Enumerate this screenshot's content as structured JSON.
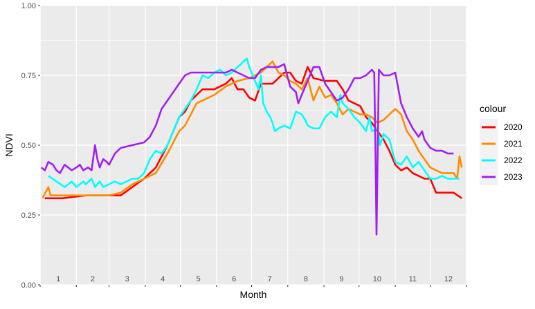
{
  "chart_data": {
    "type": "line",
    "title": "",
    "xlabel": "Month",
    "ylabel": "NDVI",
    "xlim": [
      1,
      366
    ],
    "ylim": [
      0,
      1
    ],
    "y_ticks": [
      "0.00",
      "0.25",
      "0.50",
      "0.75",
      "1.00"
    ],
    "y_tick_values": [
      0,
      0.25,
      0.5,
      0.75,
      1.0
    ],
    "month_labels": [
      "1",
      "2",
      "3",
      "4",
      "5",
      "6",
      "7",
      "8",
      "9",
      "10",
      "11",
      "12"
    ],
    "grid": true,
    "legend_title": "colour",
    "legend_position": "right",
    "series": [
      {
        "name": "2020",
        "color": "#ff0000",
        "points": [
          [
            5,
            0.31
          ],
          [
            20,
            0.31
          ],
          [
            40,
            0.32
          ],
          [
            60,
            0.32
          ],
          [
            70,
            0.32
          ],
          [
            80,
            0.35
          ],
          [
            90,
            0.38
          ],
          [
            100,
            0.42
          ],
          [
            110,
            0.5
          ],
          [
            120,
            0.6
          ],
          [
            125,
            0.62
          ],
          [
            130,
            0.66
          ],
          [
            135,
            0.68
          ],
          [
            140,
            0.7
          ],
          [
            150,
            0.7
          ],
          [
            160,
            0.72
          ],
          [
            165,
            0.74
          ],
          [
            170,
            0.7
          ],
          [
            175,
            0.7
          ],
          [
            180,
            0.67
          ],
          [
            185,
            0.66
          ],
          [
            190,
            0.72
          ],
          [
            200,
            0.72
          ],
          [
            210,
            0.76
          ],
          [
            215,
            0.76
          ],
          [
            220,
            0.73
          ],
          [
            225,
            0.72
          ],
          [
            230,
            0.78
          ],
          [
            235,
            0.74
          ],
          [
            245,
            0.73
          ],
          [
            255,
            0.73
          ],
          [
            260,
            0.7
          ],
          [
            265,
            0.66
          ],
          [
            270,
            0.65
          ],
          [
            275,
            0.64
          ],
          [
            280,
            0.6
          ],
          [
            285,
            0.58
          ],
          [
            290,
            0.55
          ],
          [
            295,
            0.52
          ],
          [
            300,
            0.48
          ],
          [
            305,
            0.43
          ],
          [
            310,
            0.41
          ],
          [
            315,
            0.42
          ],
          [
            320,
            0.4
          ],
          [
            330,
            0.38
          ],
          [
            335,
            0.38
          ],
          [
            340,
            0.33
          ],
          [
            345,
            0.33
          ],
          [
            355,
            0.33
          ],
          [
            362,
            0.31
          ]
        ]
      },
      {
        "name": "2021",
        "color": "#ff8c00",
        "points": [
          [
            3,
            0.31
          ],
          [
            8,
            0.35
          ],
          [
            10,
            0.32
          ],
          [
            25,
            0.32
          ],
          [
            40,
            0.32
          ],
          [
            60,
            0.32
          ],
          [
            70,
            0.33
          ],
          [
            80,
            0.36
          ],
          [
            90,
            0.38
          ],
          [
            100,
            0.4
          ],
          [
            110,
            0.47
          ],
          [
            120,
            0.55
          ],
          [
            125,
            0.57
          ],
          [
            135,
            0.65
          ],
          [
            150,
            0.68
          ],
          [
            160,
            0.71
          ],
          [
            170,
            0.73
          ],
          [
            180,
            0.74
          ],
          [
            190,
            0.76
          ],
          [
            195,
            0.78
          ],
          [
            200,
            0.8
          ],
          [
            205,
            0.76
          ],
          [
            210,
            0.75
          ],
          [
            215,
            0.73
          ],
          [
            220,
            0.72
          ],
          [
            225,
            0.7
          ],
          [
            230,
            0.74
          ],
          [
            235,
            0.66
          ],
          [
            240,
            0.71
          ],
          [
            245,
            0.67
          ],
          [
            250,
            0.68
          ],
          [
            255,
            0.65
          ],
          [
            260,
            0.61
          ],
          [
            265,
            0.63
          ],
          [
            270,
            0.62
          ],
          [
            275,
            0.61
          ],
          [
            280,
            0.61
          ],
          [
            285,
            0.6
          ],
          [
            290,
            0.58
          ],
          [
            295,
            0.59
          ],
          [
            300,
            0.61
          ],
          [
            305,
            0.63
          ],
          [
            310,
            0.61
          ],
          [
            315,
            0.55
          ],
          [
            320,
            0.52
          ],
          [
            325,
            0.48
          ],
          [
            330,
            0.45
          ],
          [
            335,
            0.42
          ],
          [
            340,
            0.41
          ],
          [
            345,
            0.4
          ],
          [
            355,
            0.4
          ],
          [
            358,
            0.38
          ],
          [
            360,
            0.46
          ],
          [
            362,
            0.42
          ]
        ]
      },
      {
        "name": "2022",
        "color": "#00ffff",
        "points": [
          [
            8,
            0.39
          ],
          [
            15,
            0.37
          ],
          [
            22,
            0.35
          ],
          [
            25,
            0.36
          ],
          [
            28,
            0.37
          ],
          [
            32,
            0.35
          ],
          [
            38,
            0.37
          ],
          [
            40,
            0.36
          ],
          [
            45,
            0.38
          ],
          [
            48,
            0.35
          ],
          [
            52,
            0.37
          ],
          [
            55,
            0.35
          ],
          [
            60,
            0.36
          ],
          [
            65,
            0.37
          ],
          [
            70,
            0.36
          ],
          [
            75,
            0.37
          ],
          [
            80,
            0.38
          ],
          [
            85,
            0.38
          ],
          [
            90,
            0.4
          ],
          [
            95,
            0.45
          ],
          [
            100,
            0.48
          ],
          [
            105,
            0.47
          ],
          [
            110,
            0.5
          ],
          [
            115,
            0.55
          ],
          [
            120,
            0.6
          ],
          [
            125,
            0.63
          ],
          [
            130,
            0.66
          ],
          [
            135,
            0.7
          ],
          [
            140,
            0.75
          ],
          [
            145,
            0.74
          ],
          [
            150,
            0.76
          ],
          [
            155,
            0.77
          ],
          [
            160,
            0.75
          ],
          [
            165,
            0.76
          ],
          [
            170,
            0.78
          ],
          [
            173,
            0.79
          ],
          [
            175,
            0.8
          ],
          [
            178,
            0.81
          ],
          [
            180,
            0.78
          ],
          [
            185,
            0.73
          ],
          [
            188,
            0.7
          ],
          [
            190,
            0.75
          ],
          [
            192,
            0.65
          ],
          [
            195,
            0.62
          ],
          [
            198,
            0.6
          ],
          [
            200,
            0.58
          ],
          [
            202,
            0.55
          ],
          [
            205,
            0.56
          ],
          [
            210,
            0.57
          ],
          [
            215,
            0.56
          ],
          [
            220,
            0.62
          ],
          [
            225,
            0.61
          ],
          [
            228,
            0.59
          ],
          [
            230,
            0.57
          ],
          [
            235,
            0.56
          ],
          [
            240,
            0.56
          ],
          [
            245,
            0.6
          ],
          [
            250,
            0.62
          ],
          [
            255,
            0.6
          ],
          [
            258,
            0.68
          ],
          [
            260,
            0.65
          ],
          [
            265,
            0.63
          ],
          [
            270,
            0.6
          ],
          [
            275,
            0.58
          ],
          [
            280,
            0.55
          ],
          [
            283,
            0.6
          ],
          [
            285,
            0.55
          ],
          [
            290,
            0.56
          ],
          [
            292,
            0.5
          ],
          [
            295,
            0.54
          ],
          [
            300,
            0.52
          ],
          [
            305,
            0.44
          ],
          [
            310,
            0.43
          ],
          [
            315,
            0.46
          ],
          [
            320,
            0.42
          ],
          [
            325,
            0.44
          ],
          [
            330,
            0.41
          ],
          [
            335,
            0.38
          ],
          [
            340,
            0.38
          ],
          [
            345,
            0.39
          ],
          [
            350,
            0.38
          ],
          [
            355,
            0.38
          ],
          [
            360,
            0.38
          ]
        ]
      },
      {
        "name": "2023",
        "color": "#a020f0",
        "points": [
          [
            2,
            0.42
          ],
          [
            5,
            0.41
          ],
          [
            8,
            0.44
          ],
          [
            12,
            0.43
          ],
          [
            15,
            0.41
          ],
          [
            18,
            0.4
          ],
          [
            22,
            0.43
          ],
          [
            25,
            0.42
          ],
          [
            28,
            0.41
          ],
          [
            32,
            0.42
          ],
          [
            35,
            0.43
          ],
          [
            38,
            0.41
          ],
          [
            42,
            0.42
          ],
          [
            45,
            0.41
          ],
          [
            48,
            0.5
          ],
          [
            50,
            0.45
          ],
          [
            52,
            0.42
          ],
          [
            55,
            0.45
          ],
          [
            58,
            0.44
          ],
          [
            60,
            0.43
          ],
          [
            65,
            0.47
          ],
          [
            70,
            0.49
          ],
          [
            80,
            0.5
          ],
          [
            90,
            0.51
          ],
          [
            95,
            0.53
          ],
          [
            100,
            0.57
          ],
          [
            105,
            0.63
          ],
          [
            110,
            0.66
          ],
          [
            115,
            0.69
          ],
          [
            120,
            0.72
          ],
          [
            125,
            0.75
          ],
          [
            130,
            0.76
          ],
          [
            140,
            0.76
          ],
          [
            150,
            0.76
          ],
          [
            160,
            0.76
          ],
          [
            165,
            0.77
          ],
          [
            170,
            0.76
          ],
          [
            175,
            0.75
          ],
          [
            180,
            0.74
          ],
          [
            185,
            0.74
          ],
          [
            190,
            0.77
          ],
          [
            195,
            0.78
          ],
          [
            200,
            0.78
          ],
          [
            205,
            0.78
          ],
          [
            210,
            0.79
          ],
          [
            215,
            0.71
          ],
          [
            220,
            0.69
          ],
          [
            222,
            0.65
          ],
          [
            225,
            0.68
          ],
          [
            230,
            0.73
          ],
          [
            235,
            0.78
          ],
          [
            240,
            0.78
          ],
          [
            245,
            0.72
          ],
          [
            250,
            0.69
          ],
          [
            255,
            0.66
          ],
          [
            260,
            0.67
          ],
          [
            265,
            0.7
          ],
          [
            270,
            0.74
          ],
          [
            275,
            0.74
          ],
          [
            280,
            0.75
          ],
          [
            285,
            0.77
          ],
          [
            287,
            0.76
          ],
          [
            288,
            0.5
          ],
          [
            289,
            0.18
          ],
          [
            290,
            0.47
          ],
          [
            291,
            0.77
          ],
          [
            293,
            0.76
          ],
          [
            295,
            0.75
          ],
          [
            300,
            0.75
          ],
          [
            305,
            0.76
          ],
          [
            310,
            0.65
          ],
          [
            315,
            0.6
          ],
          [
            320,
            0.56
          ],
          [
            325,
            0.53
          ],
          [
            328,
            0.55
          ],
          [
            330,
            0.52
          ],
          [
            335,
            0.49
          ],
          [
            340,
            0.48
          ],
          [
            345,
            0.48
          ],
          [
            350,
            0.47
          ],
          [
            355,
            0.47
          ]
        ]
      }
    ]
  }
}
